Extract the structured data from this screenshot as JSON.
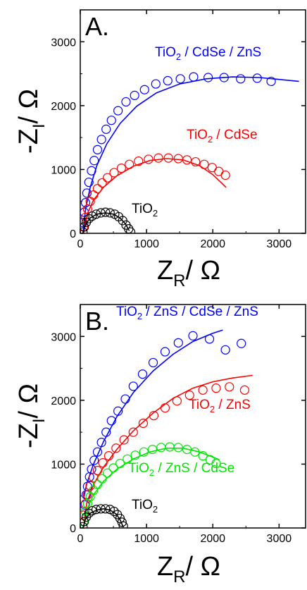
{
  "chart_data": [
    {
      "type": "scatter",
      "panel_label": "A.",
      "xlabel_main": "Z",
      "xlabel_sub": "R",
      "xlabel_unit": "/ Ω",
      "ylabel_main": "-Z",
      "ylabel_sub": "I",
      "ylabel_unit": "/ Ω",
      "xlim": [
        0,
        3400
      ],
      "ylim": [
        0,
        3500
      ],
      "xticks": [
        0,
        1000,
        2000,
        3000
      ],
      "yticks": [
        0,
        1000,
        2000,
        3000
      ],
      "series": [
        {
          "label_main": "TiO",
          "label_sub": "2",
          "label_rest": " / CdSe / ZnS",
          "color": "#0000ff",
          "points": [
            [
              40,
              170
            ],
            [
              60,
              330
            ],
            [
              80,
              480
            ],
            [
              100,
              630
            ],
            [
              130,
              800
            ],
            [
              170,
              980
            ],
            [
              210,
              1140
            ],
            [
              260,
              1310
            ],
            [
              320,
              1470
            ],
            [
              390,
              1630
            ],
            [
              470,
              1770
            ],
            [
              570,
              1920
            ],
            [
              690,
              2060
            ],
            [
              820,
              2160
            ],
            [
              970,
              2250
            ],
            [
              1140,
              2340
            ],
            [
              1320,
              2390
            ],
            [
              1510,
              2420
            ],
            [
              1710,
              2450
            ],
            [
              1930,
              2440
            ],
            [
              2170,
              2440
            ],
            [
              2420,
              2420
            ],
            [
              2670,
              2430
            ],
            [
              2880,
              2380
            ]
          ],
          "fit": [
            [
              40,
              0
            ],
            [
              80,
              380
            ],
            [
              150,
              720
            ],
            [
              250,
              1060
            ],
            [
              400,
              1400
            ],
            [
              600,
              1720
            ],
            [
              850,
              1990
            ],
            [
              1150,
              2200
            ],
            [
              1500,
              2340
            ],
            [
              1900,
              2420
            ],
            [
              2300,
              2450
            ],
            [
              2700,
              2440
            ],
            [
              3000,
              2410
            ],
            [
              3300,
              2380
            ]
          ]
        },
        {
          "label_main": "TiO",
          "label_sub": "2",
          "label_rest": " / CdSe",
          "color": "#ff0000",
          "points": [
            [
              50,
              100
            ],
            [
              80,
              250
            ],
            [
              110,
              380
            ],
            [
              150,
              500
            ],
            [
              200,
              600
            ],
            [
              260,
              700
            ],
            [
              330,
              790
            ],
            [
              410,
              870
            ],
            [
              510,
              950
            ],
            [
              620,
              1020
            ],
            [
              740,
              1080
            ],
            [
              880,
              1130
            ],
            [
              1030,
              1160
            ],
            [
              1180,
              1180
            ],
            [
              1330,
              1180
            ],
            [
              1480,
              1170
            ],
            [
              1610,
              1150
            ],
            [
              1740,
              1120
            ],
            [
              1870,
              1080
            ],
            [
              1990,
              1030
            ],
            [
              2090,
              970
            ],
            [
              2190,
              910
            ]
          ],
          "fit": [
            [
              50,
              0
            ],
            [
              100,
              290
            ],
            [
              200,
              520
            ],
            [
              350,
              720
            ],
            [
              550,
              900
            ],
            [
              800,
              1050
            ],
            [
              1050,
              1140
            ],
            [
              1300,
              1170
            ],
            [
              1550,
              1150
            ],
            [
              1800,
              1060
            ],
            [
              2000,
              920
            ],
            [
              2200,
              720
            ]
          ]
        },
        {
          "label_main": "TiO",
          "label_sub": "2",
          "label_rest": "",
          "color": "#000000",
          "points": [
            [
              40,
              20
            ],
            [
              60,
              100
            ],
            [
              90,
              170
            ],
            [
              130,
              230
            ],
            [
              180,
              270
            ],
            [
              240,
              300
            ],
            [
              310,
              320
            ],
            [
              380,
              330
            ],
            [
              450,
              320
            ],
            [
              520,
              300
            ],
            [
              580,
              260
            ],
            [
              640,
              200
            ],
            [
              690,
              130
            ],
            [
              730,
              70
            ],
            [
              760,
              20
            ]
          ],
          "fit": [
            [
              40,
              0
            ],
            [
              80,
              140
            ],
            [
              150,
              240
            ],
            [
              250,
              300
            ],
            [
              380,
              320
            ],
            [
              500,
              300
            ],
            [
              600,
              240
            ],
            [
              680,
              150
            ],
            [
              740,
              40
            ]
          ]
        }
      ]
    },
    {
      "type": "scatter",
      "panel_label": "B.",
      "xlabel_main": "Z",
      "xlabel_sub": "R",
      "xlabel_unit": "/ Ω",
      "ylabel_main": "-Z",
      "ylabel_sub": "I",
      "ylabel_unit": "/ Ω",
      "xlim": [
        0,
        3400
      ],
      "ylim": [
        0,
        3500
      ],
      "xticks": [
        0,
        1000,
        2000,
        3000
      ],
      "yticks": [
        0,
        1000,
        2000,
        3000
      ],
      "series": [
        {
          "label_main": "TiO",
          "label_sub": "2",
          "label_rest": " / ZnS / CdSe / ZnS",
          "color": "#0000ff",
          "points": [
            [
              50,
              200
            ],
            [
              70,
              360
            ],
            [
              90,
              520
            ],
            [
              110,
              650
            ],
            [
              140,
              800
            ],
            [
              170,
              920
            ],
            [
              210,
              1060
            ],
            [
              260,
              1190
            ],
            [
              320,
              1340
            ],
            [
              390,
              1500
            ],
            [
              470,
              1680
            ],
            [
              570,
              1830
            ],
            [
              680,
              2020
            ],
            [
              800,
              2220
            ],
            [
              940,
              2410
            ],
            [
              1100,
              2590
            ],
            [
              1280,
              2760
            ],
            [
              1480,
              2900
            ],
            [
              1700,
              3010
            ],
            [
              1950,
              2960
            ],
            [
              2190,
              2790
            ],
            [
              2430,
              2890
            ]
          ],
          "fit": [
            [
              50,
              460
            ],
            [
              100,
              700
            ],
            [
              200,
              1000
            ],
            [
              350,
              1350
            ],
            [
              550,
              1740
            ],
            [
              800,
              2120
            ],
            [
              1100,
              2460
            ],
            [
              1400,
              2720
            ],
            [
              1700,
              2920
            ],
            [
              2000,
              3050
            ],
            [
              2150,
              3100
            ]
          ]
        },
        {
          "label_main": "TiO",
          "label_sub": "2",
          "label_rest": " / ZnS",
          "color": "#ff0000",
          "points": [
            [
              50,
              200
            ],
            [
              80,
              380
            ],
            [
              110,
              520
            ],
            [
              150,
              660
            ],
            [
              200,
              790
            ],
            [
              260,
              900
            ],
            [
              340,
              1020
            ],
            [
              430,
              1130
            ],
            [
              540,
              1250
            ],
            [
              660,
              1380
            ],
            [
              800,
              1500
            ],
            [
              950,
              1640
            ],
            [
              1110,
              1760
            ],
            [
              1280,
              1880
            ],
            [
              1460,
              1990
            ],
            [
              1650,
              2080
            ],
            [
              1850,
              2160
            ],
            [
              2050,
              2190
            ],
            [
              2250,
              2210
            ],
            [
              2480,
              2160
            ]
          ],
          "fit": [
            [
              50,
              0
            ],
            [
              100,
              400
            ],
            [
              200,
              680
            ],
            [
              350,
              950
            ],
            [
              550,
              1230
            ],
            [
              800,
              1520
            ],
            [
              1100,
              1800
            ],
            [
              1400,
              2030
            ],
            [
              1700,
              2190
            ],
            [
              2000,
              2290
            ],
            [
              2300,
              2350
            ],
            [
              2600,
              2390
            ]
          ]
        },
        {
          "label_main": "TiO",
          "label_sub": "2",
          "label_rest": " / ZnS / CdSe",
          "color": "#00e600",
          "points": [
            [
              50,
              100
            ],
            [
              80,
              260
            ],
            [
              110,
              380
            ],
            [
              150,
              490
            ],
            [
              200,
              590
            ],
            [
              260,
              680
            ],
            [
              330,
              770
            ],
            [
              410,
              860
            ],
            [
              500,
              940
            ],
            [
              600,
              1010
            ],
            [
              710,
              1080
            ],
            [
              830,
              1140
            ],
            [
              960,
              1190
            ],
            [
              1090,
              1230
            ],
            [
              1220,
              1260
            ],
            [
              1350,
              1270
            ],
            [
              1480,
              1260
            ],
            [
              1610,
              1230
            ],
            [
              1730,
              1190
            ],
            [
              1850,
              1130
            ],
            [
              1960,
              1070
            ],
            [
              2050,
              1010
            ]
          ],
          "fit": [
            [
              50,
              0
            ],
            [
              100,
              290
            ],
            [
              200,
              520
            ],
            [
              350,
              730
            ],
            [
              550,
              920
            ],
            [
              800,
              1080
            ],
            [
              1050,
              1190
            ],
            [
              1300,
              1250
            ],
            [
              1550,
              1250
            ],
            [
              1800,
              1190
            ],
            [
              2000,
              1110
            ],
            [
              2100,
              1070
            ]
          ]
        },
        {
          "label_main": "TiO",
          "label_sub": "2",
          "label_rest": "",
          "color": "#000000",
          "points": [
            [
              40,
              20
            ],
            [
              60,
              100
            ],
            [
              90,
              170
            ],
            [
              130,
              230
            ],
            [
              180,
              270
            ],
            [
              240,
              290
            ],
            [
              310,
              300
            ],
            [
              380,
              300
            ],
            [
              450,
              290
            ],
            [
              510,
              260
            ],
            [
              560,
              210
            ],
            [
              600,
              150
            ],
            [
              630,
              90
            ],
            [
              650,
              30
            ]
          ],
          "fit": [
            [
              40,
              0
            ],
            [
              80,
              140
            ],
            [
              150,
              230
            ],
            [
              250,
              280
            ],
            [
              350,
              300
            ],
            [
              450,
              280
            ],
            [
              540,
              220
            ],
            [
              600,
              130
            ],
            [
              650,
              10
            ]
          ]
        }
      ]
    }
  ]
}
